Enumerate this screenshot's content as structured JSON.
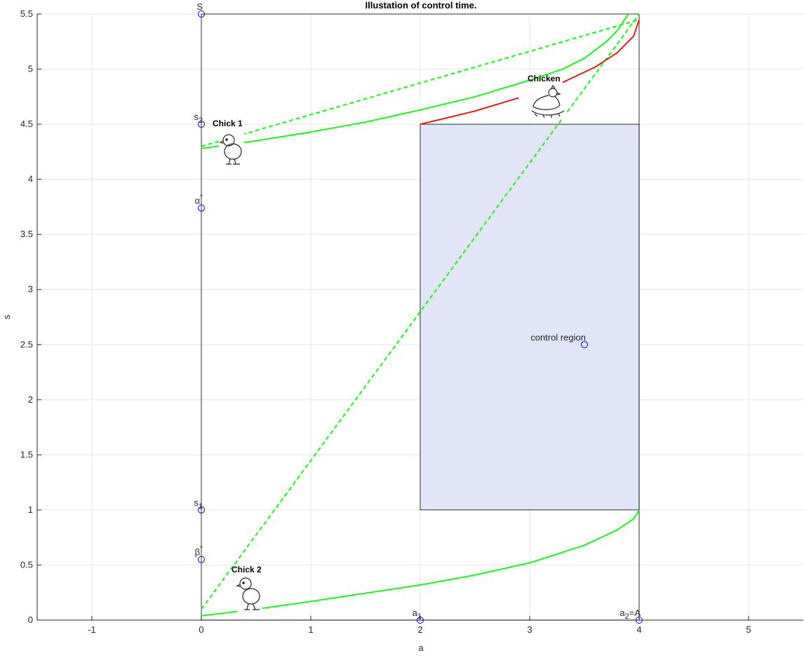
{
  "chart_data": {
    "type": "line",
    "title": "Illustation of control time.",
    "x_label": "a",
    "y_label": "s",
    "xlim": [
      -1.5,
      5.5
    ],
    "ylim": [
      0,
      5.5
    ],
    "xticks": [
      -1,
      0,
      1,
      2,
      3,
      4,
      5
    ],
    "yticks": [
      0,
      0.5,
      1,
      1.5,
      2,
      2.5,
      3,
      3.5,
      4,
      4.5,
      5,
      5.5
    ],
    "grid": true,
    "box": {
      "x": [
        0,
        4
      ],
      "y": [
        0,
        5.5
      ]
    },
    "region": {
      "x": [
        2,
        4
      ],
      "y": [
        1,
        4.5
      ],
      "color": "#e2e4f8"
    },
    "series": [
      {
        "color": "#00ff00",
        "style": "solid",
        "x": [
          0,
          0.5,
          1,
          1.5,
          2,
          2.5,
          3,
          3.3,
          3.5,
          3.7,
          3.8,
          3.9
        ],
        "values": [
          4.28,
          4.35,
          4.43,
          4.52,
          4.63,
          4.75,
          4.9,
          5.0,
          5.1,
          5.25,
          5.35,
          5.5
        ]
      },
      {
        "color": "#00ff00",
        "style": "dashed",
        "x": [
          0,
          4
        ],
        "values": [
          4.3,
          5.45
        ]
      },
      {
        "color": "#00ff00",
        "style": "dashed",
        "x": [
          0,
          4
        ],
        "values": [
          0.1,
          5.5
        ]
      },
      {
        "color": "#00ff00",
        "style": "solid",
        "x": [
          0,
          0.5,
          1,
          1.5,
          2,
          2.5,
          3,
          3.5,
          3.8,
          3.95,
          4
        ],
        "values": [
          0.04,
          0.1,
          0.17,
          0.245,
          0.32,
          0.41,
          0.52,
          0.68,
          0.82,
          0.92,
          1.0
        ]
      },
      {
        "color": "#ff0000",
        "style": "solid",
        "x": [
          2,
          2.5,
          2.9,
          null,
          3.3,
          3.6,
          3.8,
          3.95,
          4
        ],
        "values": [
          4.5,
          4.62,
          4.74,
          null,
          4.88,
          5.02,
          5.15,
          5.3,
          5.45
        ]
      }
    ],
    "points": [
      {
        "x": 0,
        "y": 5.5,
        "label": "S"
      },
      {
        "x": 0,
        "y": 4.5,
        "label": "s",
        "sub": "2"
      },
      {
        "x": 0,
        "y": 3.74,
        "label": "α",
        "sup": "*"
      },
      {
        "x": 0,
        "y": 1,
        "label": "s",
        "sub": "1"
      },
      {
        "x": 0,
        "y": 0.55,
        "label": "β",
        "sup": "*"
      },
      {
        "x": 2,
        "y": 0,
        "label": "a",
        "sub": "1"
      },
      {
        "x": 4,
        "y": 0,
        "label": "a",
        "sub": "2",
        "tail": "=A"
      },
      {
        "x": 3.5,
        "y": 2.5,
        "label": "control region"
      }
    ],
    "annotations": [
      "Chick 1",
      "Chicken",
      "Chick 2"
    ]
  }
}
